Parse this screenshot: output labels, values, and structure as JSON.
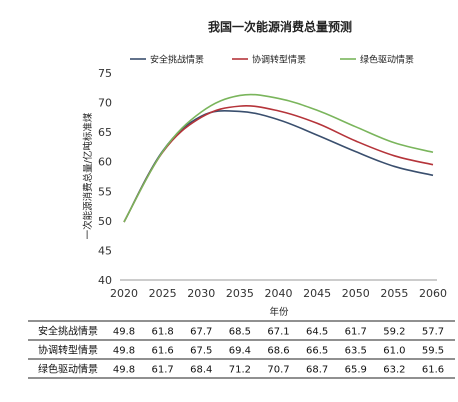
{
  "chart_data": {
    "type": "line",
    "title": "我国一次能源消费总量预测",
    "xlabel": "年份",
    "ylabel": "一次能源消费总量/亿吨标准煤",
    "ylim": [
      40,
      75
    ],
    "yticks": [
      40,
      45,
      50,
      55,
      60,
      65,
      70,
      75
    ],
    "x": [
      2020,
      2025,
      2030,
      2035,
      2040,
      2045,
      2050,
      2055,
      2060
    ],
    "legend_position": "top",
    "grid": false,
    "series": [
      {
        "name": "安全挑战情景",
        "color": "#3a4f6e",
        "values": [
          49.8,
          61.8,
          67.7,
          68.5,
          67.1,
          64.5,
          61.7,
          59.2,
          57.7
        ],
        "labels": [
          "49.8",
          "61.8",
          "67.7",
          "68.5",
          "67.1",
          "64.5",
          "61.7",
          "59.2",
          "57.7"
        ]
      },
      {
        "name": "协调转型情景",
        "color": "#b5343a",
        "values": [
          49.8,
          61.6,
          67.5,
          69.4,
          68.6,
          66.5,
          63.5,
          61.0,
          59.5
        ],
        "labels": [
          "49.8",
          "61.6",
          "67.5",
          "69.4",
          "68.6",
          "66.5",
          "63.5",
          "61.0",
          "59.5"
        ]
      },
      {
        "name": "绿色驱动情景",
        "color": "#7ab55c",
        "values": [
          49.8,
          61.7,
          68.4,
          71.2,
          70.7,
          68.7,
          65.9,
          63.2,
          61.6
        ],
        "labels": [
          "49.8",
          "61.7",
          "68.4",
          "71.2",
          "70.7",
          "68.7",
          "65.9",
          "63.2",
          "61.6"
        ]
      }
    ]
  }
}
